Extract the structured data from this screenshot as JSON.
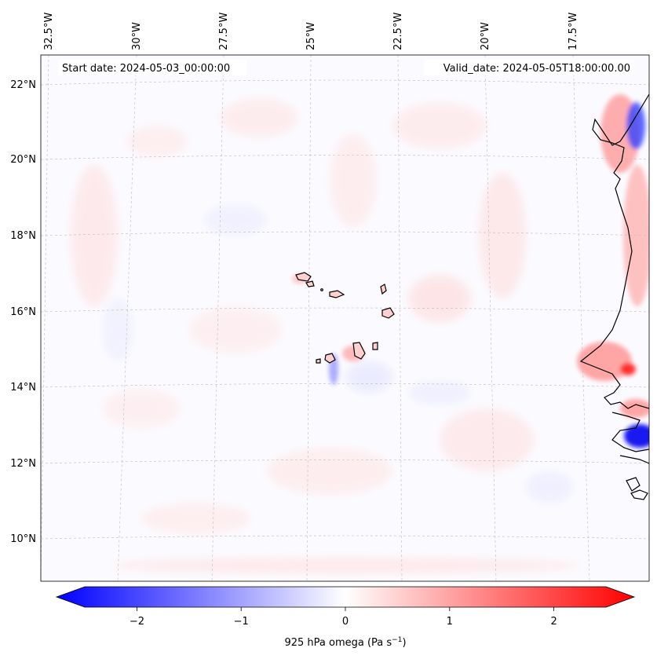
{
  "header": {
    "start_date": "Start date: 2024-05-03_00:00:00",
    "valid_date": "Valid_date: 2024-05-05T18:00:00.00"
  },
  "map": {
    "lon_labels": [
      "32.5°W",
      "30°W",
      "27.5°W",
      "25°W",
      "22.5°W",
      "20°W",
      "17.5°W"
    ],
    "lat_labels": [
      "22°N",
      "20°N",
      "18°N",
      "16°N",
      "14°N",
      "12°N",
      "10°N"
    ],
    "gridlines": true,
    "coastline_color": "#000000"
  },
  "colorbar": {
    "ticks": [
      "−2",
      "−1",
      "0",
      "1",
      "2"
    ],
    "tick_values": [
      -2,
      -1,
      0,
      1,
      2
    ],
    "range": [
      -2.6,
      2.6
    ],
    "label_prefix": "925 hPa omega (Pa s",
    "label_sup": "−1",
    "label_suffix": ")",
    "colormap": "bwr",
    "extend": "both"
  }
}
